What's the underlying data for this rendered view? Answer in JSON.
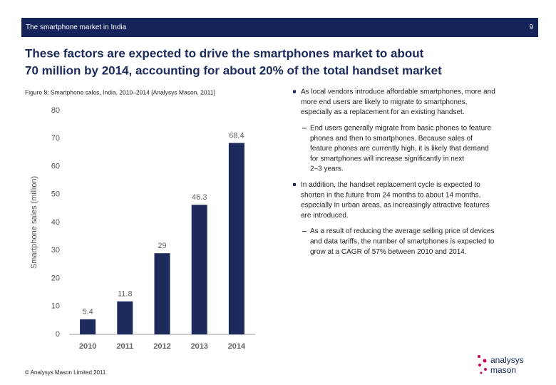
{
  "header": {
    "title": "The smartphone market in India",
    "page": "9"
  },
  "slide_title": [
    "These factors are expected to drive the smartphones market to about",
    "70 million by 2014, accounting for about 20% of the total handset market"
  ],
  "chart_data": {
    "type": "bar",
    "title": "Figure 8: Smartphone sales, India, 2010–2014 [Analysys Mason, 2011]",
    "y_label": "Smartphone sales (million)",
    "categories": [
      "2010",
      "2011",
      "2012",
      "2013",
      "2014"
    ],
    "values": [
      5.4,
      11.8,
      29,
      46.3,
      68.4
    ],
    "color": "#1c2a5c",
    "ylim": [
      0,
      80
    ],
    "yticks": [
      0,
      10,
      20,
      30,
      40,
      50,
      60,
      70,
      80
    ],
    "grid": false
  },
  "bullets": [
    {
      "level": 1,
      "lines": [
        "As local vendors introduce affordable smartphones, more and",
        "more end users are likely to migrate to smartphones,",
        "especially as a replacement for an existing handset."
      ]
    },
    {
      "level": 2,
      "lines": [
        "End users generally migrate from basic phones to feature",
        "phones and then to smartphones. Because sales of",
        "feature phones are currently high, it is likely that demand",
        "for smartphones will increase significantly in next",
        "2–3 years."
      ]
    },
    {
      "level": 1,
      "lines": [
        "In addition, the handset replacement cycle is expected to",
        "shorten in the future from 24 months to about 14 months,",
        "especially in urban areas, as increasingly attractive features",
        "are introduced."
      ]
    },
    {
      "level": 2,
      "lines": [
        "As a result of reducing the average selling price of devices",
        "and data tariffs, the number of smartphones is expected to",
        "grow at a CAGR of 57% between 2010 and 2014."
      ]
    }
  ],
  "footer": "© Analysys Mason Limited 2011",
  "logo": [
    "analysys",
    "mason"
  ]
}
